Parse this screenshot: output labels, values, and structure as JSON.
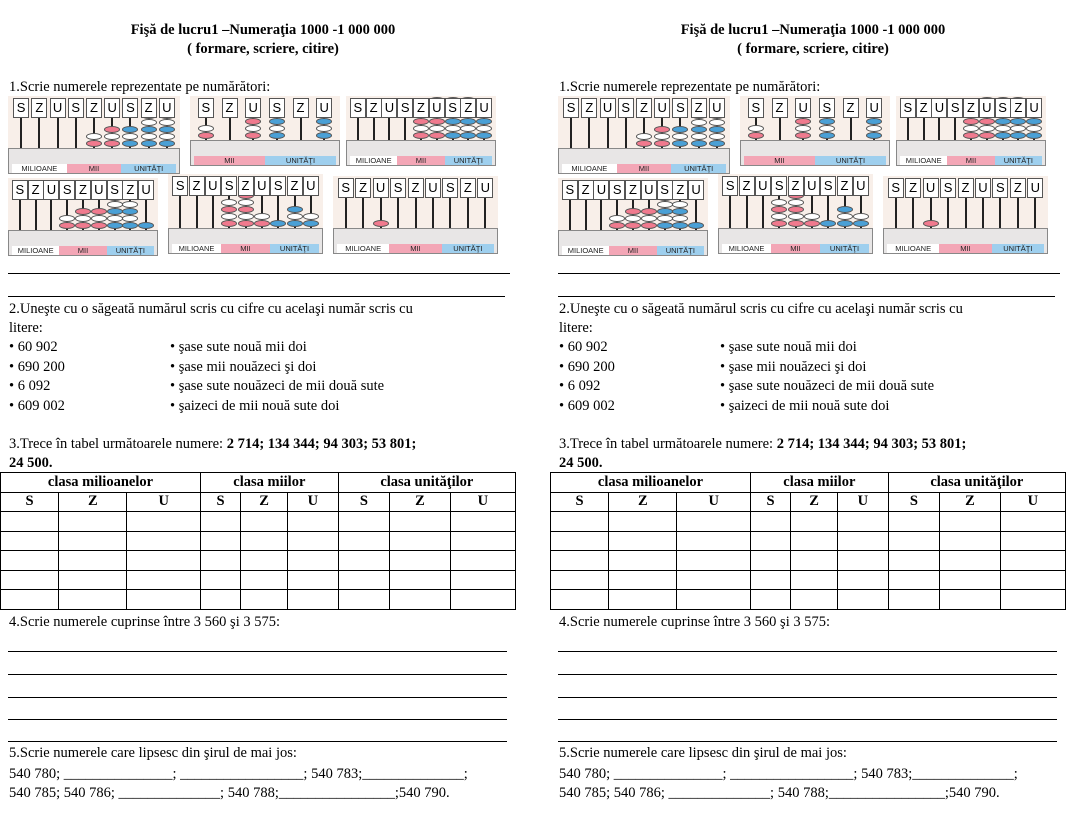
{
  "title_line1": "Fişă de lucru1 –Numeraţia 1000 -1 000 000",
  "title_line2": "( formare, scriere, citire)",
  "ex1": {
    "prompt": "1.Scrie numerele reprezentate pe numărători:",
    "slot_letters": [
      "S",
      "Z",
      "U"
    ],
    "class_labels": {
      "millions": "MILIOANE",
      "thousands": "MII",
      "units": "UNITĂŢI"
    }
  },
  "ex2": {
    "prompt_line1": "2.Uneşte cu o săgeată numărul scris cu cifre cu acelaşi număr scris cu",
    "prompt_line2": "litere:",
    "numbers": [
      "• 60 902",
      "• 690 200",
      "• 6 092",
      "• 609 002"
    ],
    "words": [
      "• şase sute nouă mii doi",
      "• şase mii nouăzeci şi doi",
      "• şase sute nouăzeci de mii două sute",
      "• şaizeci de mii nouă sute doi"
    ]
  },
  "ex3": {
    "prompt_line1_text": "3.Trece în tabel următoarele numere: ",
    "prompt_line1_bold": "2 714; 134 344; 94 303; 53 801;",
    "prompt_line2_bold": "24 500.",
    "class_headers": [
      "clasa milioanelor",
      "clasa miilor",
      "clasa unităţilor"
    ],
    "column_headers": [
      "S",
      "Z",
      "U",
      "S",
      "Z",
      "U",
      "S",
      "Z",
      "U"
    ]
  },
  "ex4": {
    "prompt": "4.Scrie numerele cuprinse între 3 560 şi 3 575:"
  },
  "ex5": {
    "prompt": "5.Scrie numerele care lipsesc din şirul de mai jos:",
    "line1": "540 780; _______________; _________________; 540  783;______________;",
    "line2": "540 785; 540 786; ______________; 540 788;________________;540 790."
  },
  "colors": {
    "bead_red": "#f07a8e",
    "bead_white": "#ffffff",
    "bead_blue": "#4aa0d6",
    "units_label": "#9ecfee",
    "thousands_label": "#f3a6b6"
  }
}
